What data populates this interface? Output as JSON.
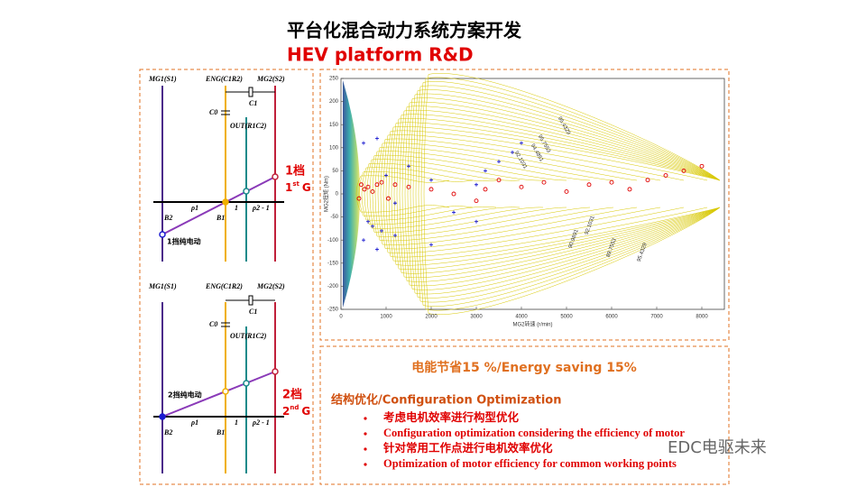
{
  "title": "平台化混合动力系统方案开发",
  "subtitle": "HEV platform R&D",
  "lever_diagrams": [
    {
      "mg1": "MG1(S1)",
      "eng": "ENG(C1R2)",
      "mg2": "MG2(S2)",
      "c1": "C1",
      "c0": "C0",
      "out": "OUT(R1C2)",
      "b2": "B2",
      "rho1": "ρ1",
      "b1": "B1",
      "one": "1",
      "rho2": "ρ2 - 1",
      "mode": "1挡纯电动",
      "gear": "1档",
      "gear_num": "1",
      "gear_sup": "st",
      "gear_g": "G"
    },
    {
      "mg1": "MG1(S1)",
      "eng": "ENG(C1R2)",
      "mg2": "MG2(S2)",
      "c1": "C1",
      "c0": "C0",
      "out": "OUT(R1C2)",
      "b2": "B2",
      "rho1": "ρ1",
      "b1": "B1",
      "one": "1",
      "rho2": "ρ2 - 1",
      "mode": "2挡纯电动",
      "gear": "2档",
      "gear_num": "2",
      "gear_sup": "nd",
      "gear_g": "G"
    }
  ],
  "chart_data": {
    "type": "scatter",
    "x_label": "MG2转速 (r/min)",
    "y_label": "MG2扭矩 (Nm)",
    "xlim": [
      0,
      8500
    ],
    "ylim": [
      -250,
      250
    ],
    "xticks": [
      0,
      1000,
      2000,
      3000,
      4000,
      5000,
      6000,
      7000,
      8000
    ],
    "yticks": [
      -250,
      -200,
      -150,
      -100,
      -50,
      0,
      50,
      100,
      150,
      200,
      250
    ],
    "contour_labels": [
      "95.4329",
      "95.7553",
      "94.4851",
      "92.1031",
      "92.1031",
      "90.9891",
      "89.7553",
      "95.4329"
    ],
    "series": [
      {
        "color": "#e00000",
        "marker": "circle",
        "x": [
          400,
          450,
          520,
          600,
          700,
          800,
          900,
          1050,
          1200,
          1500,
          2000,
          2500,
          3000,
          3200,
          3500,
          4000,
          4500,
          5000,
          5500,
          6000,
          6400,
          6800,
          7200,
          7600,
          8000
        ],
        "values": [
          -10,
          20,
          10,
          15,
          5,
          20,
          25,
          -10,
          20,
          15,
          10,
          0,
          -15,
          10,
          30,
          15,
          25,
          5,
          20,
          25,
          10,
          30,
          40,
          50,
          60
        ]
      },
      {
        "color": "#1a1ad0",
        "marker": "plus",
        "x": [
          500,
          600,
          700,
          800,
          900,
          1000,
          1200,
          1500,
          2000,
          2500,
          3000,
          3200,
          3500,
          3800,
          4000,
          500,
          800,
          1200,
          2000,
          3000
        ],
        "values": [
          110,
          -60,
          -70,
          120,
          -80,
          40,
          -90,
          60,
          -110,
          -40,
          -60,
          50,
          70,
          90,
          110,
          -100,
          -120,
          -20,
          30,
          20
        ]
      }
    ]
  },
  "panel": {
    "energy_saving": "电能节省15 %/Energy saving 15%",
    "section_title": "结构优化/Configuration Optimization",
    "bullets": [
      "考虑电机效率进行构型优化",
      "Configuration optimization considering the efficiency of motor",
      "针对常用工作点进行电机效率优化",
      "Optimization of motor efficiency for common working points"
    ]
  },
  "watermark": "EDC电驱未来"
}
